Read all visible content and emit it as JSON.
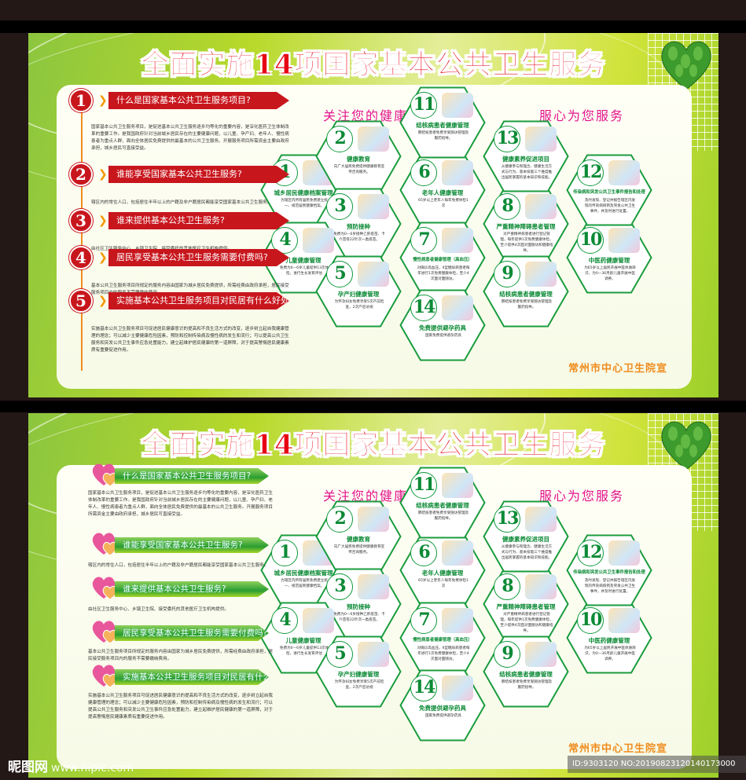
{
  "poster": {
    "title": "全面实施14项国家基本公共卫生服务",
    "subtitle_left": "关注您的健康",
    "subtitle_right": "服心为您服务",
    "organization": "常州市中心卫生院宣",
    "colors": {
      "title_red": "#e60012",
      "hex_green": "#0b8a35",
      "question_red": "#c8161d",
      "accent_orange": "#f08c1e",
      "subtitle_pink": "#e4138c"
    }
  },
  "questions": [
    {
      "num": "1",
      "q": "什么是国家基本公共卫生服务项目?",
      "a": "国家基本公共卫生服务项目，是促进基本公共卫生服务逐步均等化的重要内容，是深化医药卫生体制改革的重要工作。是我国政府针对当前城乡居民存在的主要健康问题，以儿童、孕产妇、老年人、慢性病患者为重点人群，面向全体居民免费提供的最基本的公共卫生服务。开展服务项目所需资金主要由政府承担，城乡居民可直接受益。"
    },
    {
      "num": "2",
      "q": "谁能享受国家基本公共卫生服务?",
      "a": "辖区内的常住人口，包括居住半年以上的户籍及非户籍居民都能享受国家基本公共卫生服务。"
    },
    {
      "num": "3",
      "q": "谁来提供基本公共卫生服务?",
      "a": "由社区卫生服务中心、乡镇卫生院、接受委托的其他医疗卫生机构提供。"
    },
    {
      "num": "4",
      "q": "居民享受基本公共卫生服务需要付费吗?",
      "a": "基本公共卫生服务项目所规定的服务内容由国家为城乡居民免费提供，所需经费由政府承担，居民接受服务项目内的服务不需要缴纳费用。"
    },
    {
      "num": "5",
      "q": "实施基本公共卫生服务项目对民居有什么好处?",
      "a": "实施基本公共卫生服务项目可促进居民健康意识的提高和不良生活方式的改变，逐步树立起自我健康管理的理念；可以减少主要健康危险因素，预防和控制传染病及慢性病的发生和流行；可以提高公共卫生服务和突发公共卫生事件应急处置能力，建立起维护居民健康的第一道屏障，对于提高警惕居民健康素质有重要促进作用。"
    }
  ],
  "services": [
    {
      "num": "1",
      "title": "城乡居民健康档案管理",
      "desc": "为辖区内所有居民免费建立统一、规范居民健康档案。"
    },
    {
      "num": "2",
      "title": "健康教育",
      "desc": "向广大居民免费提供健康教育宣传咨询服务。"
    },
    {
      "num": "3",
      "title": "预防接种",
      "desc": "免费为0—6岁接种乙肝疫苗、卡介苗等22针次一类疫苗。"
    },
    {
      "num": "4",
      "title": "儿童健康管理",
      "desc": "免费为0—6岁儿童提供13次体检，进行生长发育评估"
    },
    {
      "num": "5",
      "title": "孕产妇健康管理",
      "desc": "为怀孕妇女免费享受5次产前检查，2次产后访视"
    },
    {
      "num": "6",
      "title": "老年人健康管理",
      "desc": "65岁以上老年人每年免费体检1次"
    },
    {
      "num": "7",
      "title": "慢性病患者健康管理（高血压）",
      "desc": "对确诊高血压，II型糖尿病患者每年进行1次免费健康体检，至少4次面对面随访。"
    },
    {
      "num": "8",
      "title": "严重精神障碍患者管理",
      "desc": "对严重精神病患者进行登记管理，每年提供1次免费健康体检，至少提供4次面对面随访和健康指导。"
    },
    {
      "num": "9",
      "title": "结核病患者健康管理",
      "desc": "肺结核患者免费享受随访管理及服药指导。"
    },
    {
      "num": "10",
      "title": "中医药健康管理",
      "desc": "为65岁以上居民开展中医体质辨识，为0—36月龄儿童开展中医调养。"
    },
    {
      "num": "11",
      "title": "结核病患者健康管理",
      "desc": "肺结核患者免费享受随访管理及服药指导。"
    },
    {
      "num": "12",
      "title": "传染病和突发公共卫生事件报告和处理",
      "desc": "及时发现、登记并报告辖区内发现的传染病病例及突发公共卫生事件，并及时进行处置。"
    },
    {
      "num": "13",
      "title": "健康素养促进项目",
      "desc": "从健康参与和理念、健康生活方式与行为、基本技能三个维度推出居民掌握的基本知识和技能。"
    },
    {
      "num": "14",
      "title": "免费提供避孕药具",
      "desc": "国家免费提供避孕药具"
    }
  ],
  "watermark": {
    "logo": "昵图网",
    "site": "www.nipic.com",
    "id_text": "ID:9303120 NO:20190823120140173000"
  }
}
